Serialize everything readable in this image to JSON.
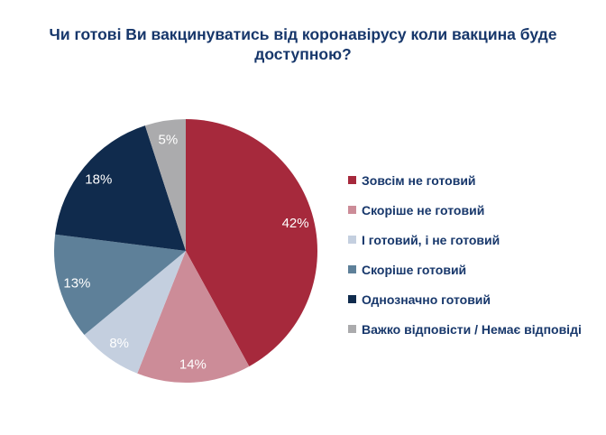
{
  "colors": {
    "background": "#FFFFFF",
    "title_text": "#17376B",
    "legend_text": "#17376B",
    "slice_label_text": "#FFFFFF"
  },
  "chart_data": {
    "type": "pie",
    "title": "Чи готові Ви вакцинуватись від коронавірусу коли вакцина буде доступною?",
    "categories": [
      "Зовсім не готовий",
      "Скоріше не готовий",
      "І готовий, і не готовий",
      "Скоріше готовий",
      "Однозначно готовий",
      "Важко відповісти / Немає відповіді"
    ],
    "values": [
      42,
      14,
      8,
      13,
      18,
      5
    ],
    "labels": [
      "42%",
      "14%",
      "8%",
      "13%",
      "18%",
      "5%"
    ],
    "colors": [
      "#A6293C",
      "#CC8C98",
      "#C4CFDF",
      "#5E8099",
      "#102B4D",
      "#ABABAD"
    ],
    "start_angle_deg": 0,
    "direction": "clockwise",
    "legend_position": "right",
    "label_radius_frac": 0.86
  }
}
